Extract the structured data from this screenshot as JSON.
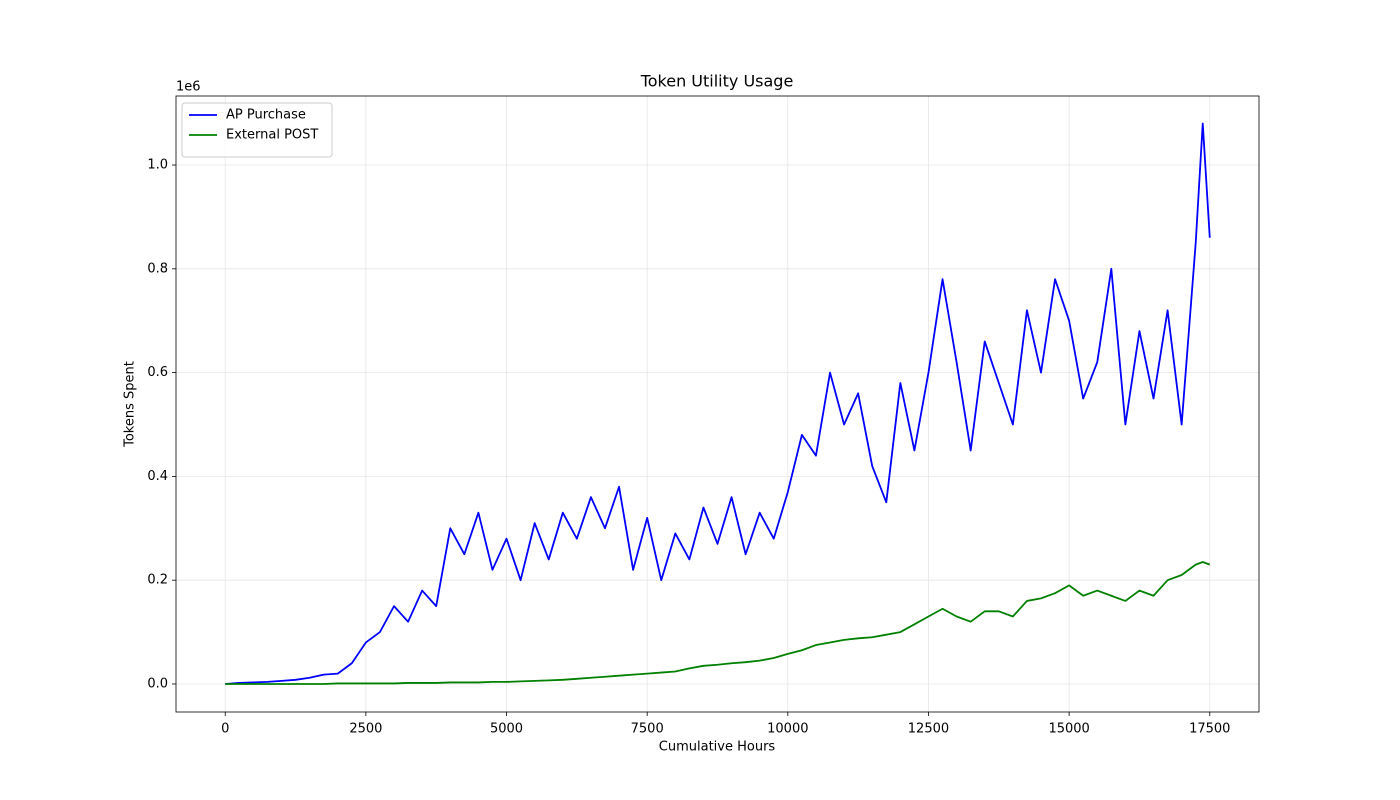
{
  "chart_data": {
    "type": "line",
    "title": "Token Utility Usage",
    "x_label": "Cumulative Hours",
    "y_label": "Tokens Spent",
    "y_scale_label": "1e6",
    "x": [
      0,
      250,
      500,
      750,
      1000,
      1250,
      1500,
      1750,
      2000,
      2250,
      2500,
      2750,
      3000,
      3250,
      3500,
      3750,
      4000,
      4250,
      4500,
      4750,
      5000,
      5250,
      5500,
      5750,
      6000,
      6250,
      6500,
      6750,
      7000,
      7250,
      7500,
      7750,
      8000,
      8250,
      8500,
      8750,
      9000,
      9250,
      9500,
      9750,
      10000,
      10250,
      10500,
      10750,
      11000,
      11250,
      11500,
      11750,
      12000,
      12250,
      12500,
      12750,
      13000,
      13250,
      13500,
      13750,
      14000,
      14250,
      14500,
      14750,
      15000,
      15250,
      15500,
      15750,
      16000,
      16250,
      16500,
      16750,
      17000,
      17250,
      17375,
      17500
    ],
    "series": [
      {
        "name": "AP Purchase",
        "color": "#0000ff",
        "values": [
          0,
          0.002,
          0.003,
          0.004,
          0.006,
          0.008,
          0.012,
          0.018,
          0.02,
          0.04,
          0.08,
          0.1,
          0.15,
          0.12,
          0.18,
          0.15,
          0.3,
          0.25,
          0.33,
          0.22,
          0.28,
          0.2,
          0.31,
          0.24,
          0.33,
          0.28,
          0.36,
          0.3,
          0.38,
          0.22,
          0.32,
          0.2,
          0.29,
          0.24,
          0.34,
          0.27,
          0.36,
          0.25,
          0.33,
          0.28,
          0.37,
          0.48,
          0.44,
          0.6,
          0.5,
          0.56,
          0.42,
          0.35,
          0.58,
          0.45,
          0.6,
          0.78,
          0.62,
          0.45,
          0.66,
          0.58,
          0.5,
          0.72,
          0.6,
          0.78,
          0.7,
          0.55,
          0.62,
          0.8,
          0.5,
          0.68,
          0.55,
          0.72,
          0.5,
          0.85,
          1.08,
          0.86
        ]
      },
      {
        "name": "External POST",
        "color": "#008000",
        "values": [
          0,
          0,
          0,
          0,
          0,
          0,
          0,
          0,
          0.001,
          0.001,
          0.001,
          0.001,
          0.001,
          0.002,
          0.002,
          0.002,
          0.003,
          0.003,
          0.003,
          0.004,
          0.004,
          0.005,
          0.006,
          0.007,
          0.008,
          0.01,
          0.012,
          0.014,
          0.016,
          0.018,
          0.02,
          0.022,
          0.024,
          0.03,
          0.035,
          0.037,
          0.04,
          0.042,
          0.045,
          0.05,
          0.058,
          0.065,
          0.075,
          0.08,
          0.085,
          0.088,
          0.09,
          0.095,
          0.1,
          0.115,
          0.13,
          0.145,
          0.13,
          0.12,
          0.14,
          0.14,
          0.13,
          0.16,
          0.165,
          0.175,
          0.19,
          0.17,
          0.18,
          0.17,
          0.16,
          0.18,
          0.17,
          0.2,
          0.21,
          0.23,
          0.235,
          0.23
        ]
      }
    ],
    "xlim": [
      -875,
      18375
    ],
    "ylim": [
      -0.054,
      1.133
    ],
    "xticks": [
      0,
      2500,
      5000,
      7500,
      10000,
      12500,
      15000,
      17500
    ],
    "yticks": [
      {
        "value": 0,
        "label": "0.0"
      },
      {
        "value": 0.2,
        "label": "0.2"
      },
      {
        "value": 0.4,
        "label": "0.4"
      },
      {
        "value": 0.6,
        "label": "0.6"
      },
      {
        "value": 0.8,
        "label": "0.8"
      },
      {
        "value": 1.0,
        "label": "1.0"
      }
    ],
    "grid": true,
    "legend": "upper-left"
  }
}
